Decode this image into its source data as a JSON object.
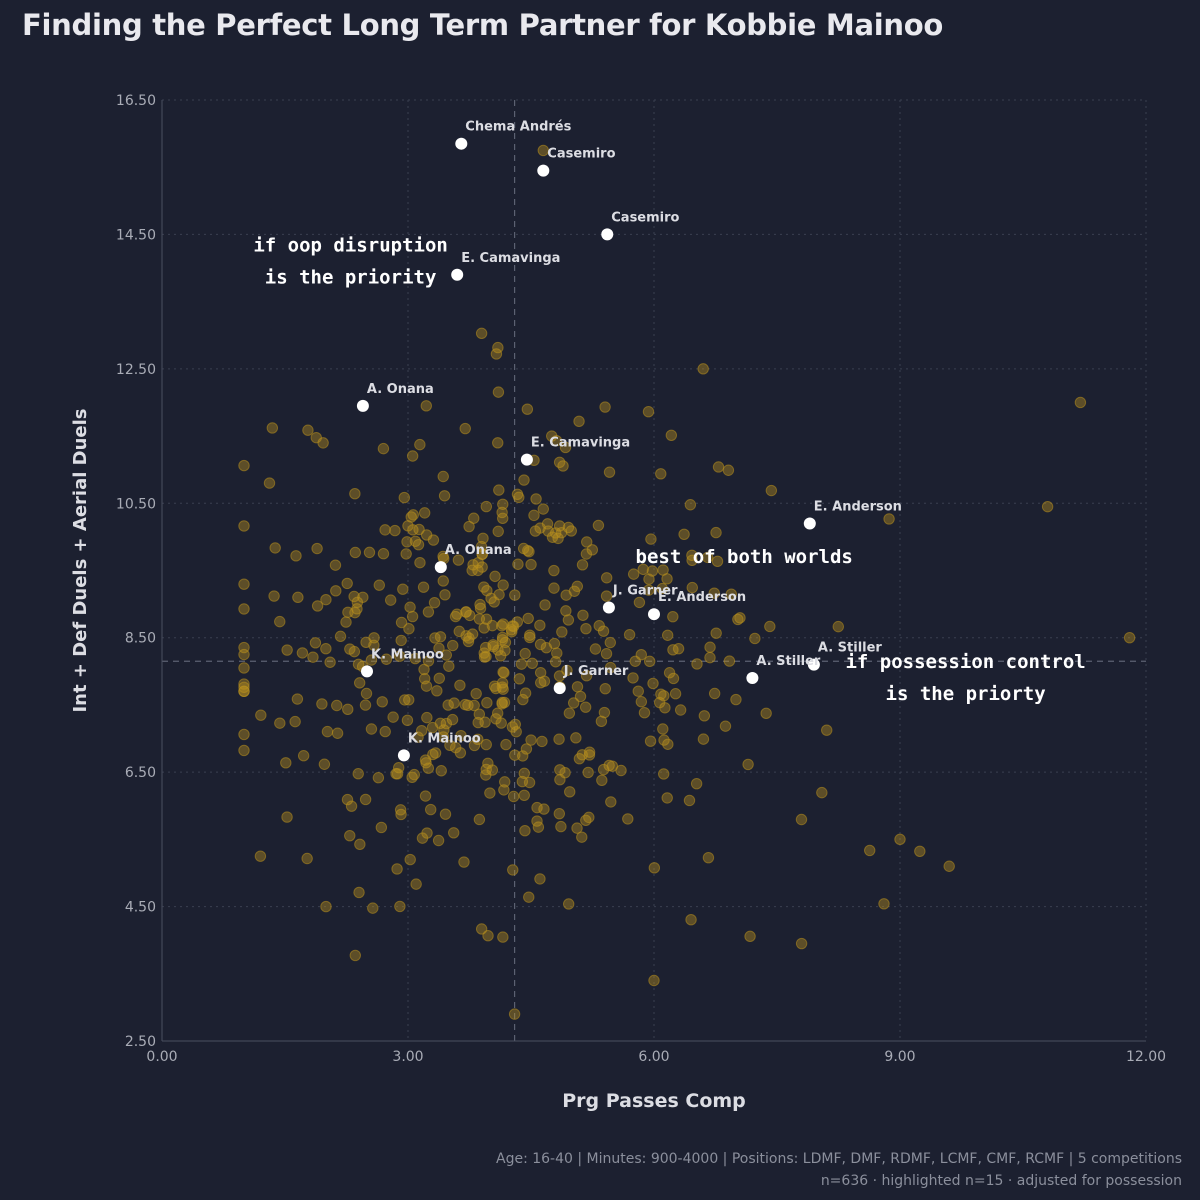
{
  "page": {
    "background": "#1c2030",
    "title": "Finding the Perfect Long Term Partner for Kobbie Mainoo",
    "footer_line1": "Age: 16-40 | Minutes: 900-4000 | Positions: LDMF, DMF, RDMF, LCMF, CMF, RCMF | 5 competitions",
    "footer_line2": "n=636 · highlighted n=15 · adjusted for possession"
  },
  "chart_data": {
    "type": "scatter",
    "title": "Finding the Perfect Long Term Partner for Kobbie Mainoo",
    "xlabel": "Prg Passes Comp",
    "ylabel": "Int + Def Duels + Aerial Duels",
    "xlim": [
      0,
      12
    ],
    "ylim": [
      2.5,
      16.5
    ],
    "xticks": [
      0,
      3,
      6,
      9,
      12
    ],
    "yticks": [
      2.5,
      4.5,
      6.5,
      8.5,
      10.5,
      12.5,
      14.5,
      16.5
    ],
    "tick_decimals": 2,
    "grid": true,
    "reference_lines": {
      "x": 4.3,
      "y": 8.15
    },
    "colors": {
      "background_points": "#b8901e",
      "highlight": "#ffffff",
      "grid": "#3a3f50",
      "text": "#dcdde3",
      "axis_text": "#a9acb6"
    },
    "highlighted": [
      {
        "name": "Chema Andrés",
        "x": 3.65,
        "y": 15.85
      },
      {
        "name": "Casemiro",
        "x": 4.65,
        "y": 15.45
      },
      {
        "name": "Casemiro",
        "x": 5.43,
        "y": 14.5
      },
      {
        "name": "E. Camavinga",
        "x": 3.6,
        "y": 13.9
      },
      {
        "name": "A. Onana",
        "x": 2.45,
        "y": 11.95
      },
      {
        "name": "E. Camavinga",
        "x": 4.45,
        "y": 11.15
      },
      {
        "name": "E. Anderson",
        "x": 7.9,
        "y": 10.2
      },
      {
        "name": "A. Onana",
        "x": 3.4,
        "y": 9.55
      },
      {
        "name": "J. Garner",
        "x": 5.45,
        "y": 8.95
      },
      {
        "name": "E. Anderson",
        "x": 6.0,
        "y": 8.85
      },
      {
        "name": "A. Stiller",
        "x": 7.95,
        "y": 8.1
      },
      {
        "name": "A. Stiller",
        "x": 7.2,
        "y": 7.9
      },
      {
        "name": "K. Mainoo",
        "x": 2.5,
        "y": 8.0
      },
      {
        "name": "J. Garner",
        "x": 4.85,
        "y": 7.75
      },
      {
        "name": "K. Mainoo",
        "x": 2.95,
        "y": 6.75
      }
    ],
    "annotations": [
      {
        "text": "if oop disruption\nis the priority",
        "x": 2.3,
        "y": 14.1
      },
      {
        "text": "best of both worlds",
        "x": 7.1,
        "y": 9.7
      },
      {
        "text": "if possession control\nis the priorty",
        "x": 9.8,
        "y": 7.9
      }
    ],
    "n_background": 500,
    "outliers": [
      {
        "x": 11.2,
        "y": 12.0
      },
      {
        "x": 11.8,
        "y": 8.5
      },
      {
        "x": 10.8,
        "y": 10.45
      },
      {
        "x": 4.65,
        "y": 15.75
      },
      {
        "x": 4.3,
        "y": 2.9
      },
      {
        "x": 1.2,
        "y": 5.25
      },
      {
        "x": 1.0,
        "y": 8.05
      },
      {
        "x": 6.0,
        "y": 3.4
      },
      {
        "x": 9.6,
        "y": 5.1
      },
      {
        "x": 7.8,
        "y": 3.95
      },
      {
        "x": 9.0,
        "y": 5.5
      },
      {
        "x": 2.0,
        "y": 4.5
      },
      {
        "x": 6.6,
        "y": 12.5
      }
    ]
  }
}
